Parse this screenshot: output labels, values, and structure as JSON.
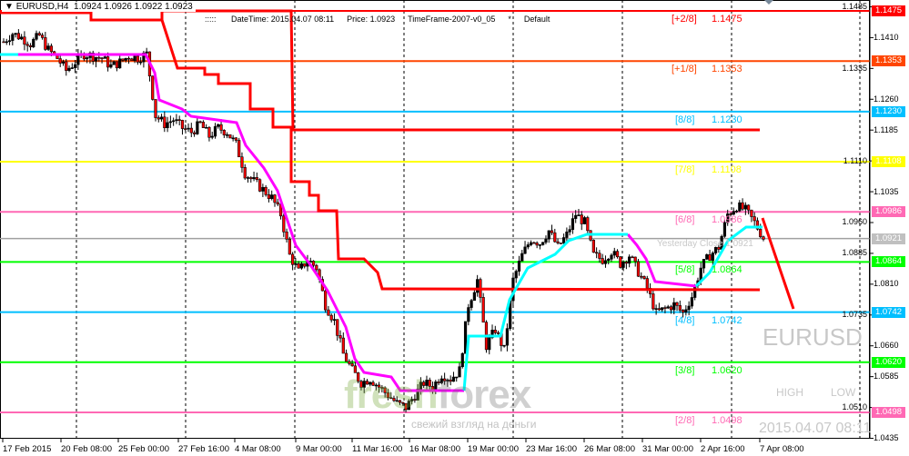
{
  "header": {
    "symbol_tf": "EURUSD,H4",
    "ohlc": "1.0924 1.0926 1.0922 1.0923"
  },
  "info": {
    "prefix": "::::: ",
    "datetime": "DateTime: 2015.04.07 08:11",
    "price": "Price: 1.0923",
    "timeframe": "TimeFrame-2007-v0_05",
    "star": "*",
    "preset": "Default"
  },
  "murrey_levels": [
    {
      "label": "[+2/8]",
      "value": "1.1475",
      "price": 1.1475,
      "color": "#ff0000"
    },
    {
      "label": "[+1/8]",
      "value": "1.1353",
      "price": 1.1353,
      "color": "#ff4500"
    },
    {
      "label": "[8/8]",
      "value": "1.1230",
      "price": 1.123,
      "color": "#00bfff"
    },
    {
      "label": "[7/8]",
      "value": "1.1108",
      "price": 1.1108,
      "color": "#ffff00"
    },
    {
      "label": "[6/8]",
      "value": "1.0986",
      "price": 1.0986,
      "color": "#ff69b4"
    },
    {
      "label": "[5/8]",
      "value": "1.0864",
      "price": 1.0864,
      "color": "#00ff00"
    },
    {
      "label": "[4/8]",
      "value": "1.0742",
      "price": 1.0742,
      "color": "#00bfff"
    },
    {
      "label": "[3/8]",
      "value": "1.0620",
      "price": 1.062,
      "color": "#00ff00"
    },
    {
      "label": "[2/8]",
      "value": "1.0498",
      "price": 1.0498,
      "color": "#ff69b4"
    }
  ],
  "yesterday_close": {
    "label": "Yesterday Close 1.0921",
    "price": 1.0921,
    "axis": "1.0921",
    "color": "#c0c0c0"
  },
  "y_axis_ticks": [
    "1.1485",
    "1.1410",
    "1.1335",
    "1.1260",
    "1.1185",
    "1.1110",
    "1.1035",
    "1.0960",
    "1.0885",
    "1.0810",
    "1.0735",
    "1.0660",
    "1.0585",
    "1.0510",
    "1.0435"
  ],
  "x_axis_ticks": [
    "17 Feb 2015",
    "20 Feb 08:00",
    "25 Feb 00:00",
    "27 Feb 16:00",
    "4 Mar 08:00",
    "9 Mar 00:00",
    "11 Mar 16:00",
    "16 Mar 08:00",
    "19 Mar 00:00",
    "23 Mar 16:00",
    "26 Mar 08:00",
    "31 Mar 00:00",
    "2 Apr 16:00",
    "7 Apr 08:00"
  ],
  "overlay": {
    "symbol": "EURUSD",
    "high": "HIGH",
    "low": "LOW",
    "datetime": "2015.04.07 08:11"
  },
  "watermark": {
    "brand_a": "fresh",
    "brand_b": "forex",
    "slogan": "свежий взгляд на деньги"
  },
  "closes": [
    1.14,
    1.142,
    1.141,
    1.1395,
    1.1415,
    1.138,
    1.136,
    1.133,
    1.135,
    1.137,
    1.1365,
    1.136,
    1.134,
    1.135,
    1.1365,
    1.136,
    1.137,
    1.122,
    1.12,
    1.121,
    1.119,
    1.118,
    1.12,
    1.117,
    1.119,
    1.118,
    1.115,
    1.108,
    1.106,
    1.104,
    1.102,
    1.098,
    1.088,
    1.084,
    1.087,
    1.085,
    1.076,
    1.072,
    1.064,
    1.06,
    1.057,
    1.058,
    1.056,
    1.054,
    1.052,
    1.051,
    1.054,
    1.057,
    1.056,
    1.059,
    1.058,
    1.06,
    1.076,
    1.082,
    1.066,
    1.07,
    1.065,
    1.082,
    1.088,
    1.092,
    1.091,
    1.094,
    1.09,
    1.093,
    1.098,
    1.096,
    1.088,
    1.087,
    1.089,
    1.086,
    1.088,
    1.084,
    1.08,
    1.074,
    1.075,
    1.076,
    1.074,
    1.078,
    1.085,
    1.088,
    1.09,
    1.098,
    1.1,
    1.099,
    1.096,
    1.0923
  ]
}
